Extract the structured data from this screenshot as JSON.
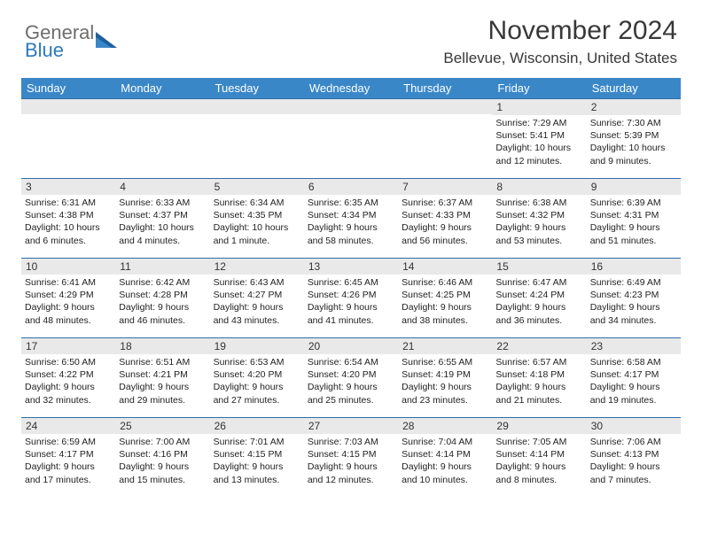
{
  "brand": {
    "top": "General",
    "bottom": "Blue"
  },
  "title": "November 2024",
  "location": "Bellevue, Wisconsin, United States",
  "colors": {
    "header_bg": "#3a87c8",
    "header_text": "#ffffff",
    "daynum_bg": "#e9e9e9",
    "border": "#2f6fa8",
    "logo_accent": "#2f78bd",
    "logo_gray": "#6e6e6e"
  },
  "day_headers": [
    "Sunday",
    "Monday",
    "Tuesday",
    "Wednesday",
    "Thursday",
    "Friday",
    "Saturday"
  ],
  "weeks": [
    [
      {
        "n": "",
        "lines": []
      },
      {
        "n": "",
        "lines": []
      },
      {
        "n": "",
        "lines": []
      },
      {
        "n": "",
        "lines": []
      },
      {
        "n": "",
        "lines": []
      },
      {
        "n": "1",
        "lines": [
          "Sunrise: 7:29 AM",
          "Sunset: 5:41 PM",
          "Daylight: 10 hours",
          "and 12 minutes."
        ]
      },
      {
        "n": "2",
        "lines": [
          "Sunrise: 7:30 AM",
          "Sunset: 5:39 PM",
          "Daylight: 10 hours",
          "and 9 minutes."
        ]
      }
    ],
    [
      {
        "n": "3",
        "lines": [
          "Sunrise: 6:31 AM",
          "Sunset: 4:38 PM",
          "Daylight: 10 hours",
          "and 6 minutes."
        ]
      },
      {
        "n": "4",
        "lines": [
          "Sunrise: 6:33 AM",
          "Sunset: 4:37 PM",
          "Daylight: 10 hours",
          "and 4 minutes."
        ]
      },
      {
        "n": "5",
        "lines": [
          "Sunrise: 6:34 AM",
          "Sunset: 4:35 PM",
          "Daylight: 10 hours",
          "and 1 minute."
        ]
      },
      {
        "n": "6",
        "lines": [
          "Sunrise: 6:35 AM",
          "Sunset: 4:34 PM",
          "Daylight: 9 hours",
          "and 58 minutes."
        ]
      },
      {
        "n": "7",
        "lines": [
          "Sunrise: 6:37 AM",
          "Sunset: 4:33 PM",
          "Daylight: 9 hours",
          "and 56 minutes."
        ]
      },
      {
        "n": "8",
        "lines": [
          "Sunrise: 6:38 AM",
          "Sunset: 4:32 PM",
          "Daylight: 9 hours",
          "and 53 minutes."
        ]
      },
      {
        "n": "9",
        "lines": [
          "Sunrise: 6:39 AM",
          "Sunset: 4:31 PM",
          "Daylight: 9 hours",
          "and 51 minutes."
        ]
      }
    ],
    [
      {
        "n": "10",
        "lines": [
          "Sunrise: 6:41 AM",
          "Sunset: 4:29 PM",
          "Daylight: 9 hours",
          "and 48 minutes."
        ]
      },
      {
        "n": "11",
        "lines": [
          "Sunrise: 6:42 AM",
          "Sunset: 4:28 PM",
          "Daylight: 9 hours",
          "and 46 minutes."
        ]
      },
      {
        "n": "12",
        "lines": [
          "Sunrise: 6:43 AM",
          "Sunset: 4:27 PM",
          "Daylight: 9 hours",
          "and 43 minutes."
        ]
      },
      {
        "n": "13",
        "lines": [
          "Sunrise: 6:45 AM",
          "Sunset: 4:26 PM",
          "Daylight: 9 hours",
          "and 41 minutes."
        ]
      },
      {
        "n": "14",
        "lines": [
          "Sunrise: 6:46 AM",
          "Sunset: 4:25 PM",
          "Daylight: 9 hours",
          "and 38 minutes."
        ]
      },
      {
        "n": "15",
        "lines": [
          "Sunrise: 6:47 AM",
          "Sunset: 4:24 PM",
          "Daylight: 9 hours",
          "and 36 minutes."
        ]
      },
      {
        "n": "16",
        "lines": [
          "Sunrise: 6:49 AM",
          "Sunset: 4:23 PM",
          "Daylight: 9 hours",
          "and 34 minutes."
        ]
      }
    ],
    [
      {
        "n": "17",
        "lines": [
          "Sunrise: 6:50 AM",
          "Sunset: 4:22 PM",
          "Daylight: 9 hours",
          "and 32 minutes."
        ]
      },
      {
        "n": "18",
        "lines": [
          "Sunrise: 6:51 AM",
          "Sunset: 4:21 PM",
          "Daylight: 9 hours",
          "and 29 minutes."
        ]
      },
      {
        "n": "19",
        "lines": [
          "Sunrise: 6:53 AM",
          "Sunset: 4:20 PM",
          "Daylight: 9 hours",
          "and 27 minutes."
        ]
      },
      {
        "n": "20",
        "lines": [
          "Sunrise: 6:54 AM",
          "Sunset: 4:20 PM",
          "Daylight: 9 hours",
          "and 25 minutes."
        ]
      },
      {
        "n": "21",
        "lines": [
          "Sunrise: 6:55 AM",
          "Sunset: 4:19 PM",
          "Daylight: 9 hours",
          "and 23 minutes."
        ]
      },
      {
        "n": "22",
        "lines": [
          "Sunrise: 6:57 AM",
          "Sunset: 4:18 PM",
          "Daylight: 9 hours",
          "and 21 minutes."
        ]
      },
      {
        "n": "23",
        "lines": [
          "Sunrise: 6:58 AM",
          "Sunset: 4:17 PM",
          "Daylight: 9 hours",
          "and 19 minutes."
        ]
      }
    ],
    [
      {
        "n": "24",
        "lines": [
          "Sunrise: 6:59 AM",
          "Sunset: 4:17 PM",
          "Daylight: 9 hours",
          "and 17 minutes."
        ]
      },
      {
        "n": "25",
        "lines": [
          "Sunrise: 7:00 AM",
          "Sunset: 4:16 PM",
          "Daylight: 9 hours",
          "and 15 minutes."
        ]
      },
      {
        "n": "26",
        "lines": [
          "Sunrise: 7:01 AM",
          "Sunset: 4:15 PM",
          "Daylight: 9 hours",
          "and 13 minutes."
        ]
      },
      {
        "n": "27",
        "lines": [
          "Sunrise: 7:03 AM",
          "Sunset: 4:15 PM",
          "Daylight: 9 hours",
          "and 12 minutes."
        ]
      },
      {
        "n": "28",
        "lines": [
          "Sunrise: 7:04 AM",
          "Sunset: 4:14 PM",
          "Daylight: 9 hours",
          "and 10 minutes."
        ]
      },
      {
        "n": "29",
        "lines": [
          "Sunrise: 7:05 AM",
          "Sunset: 4:14 PM",
          "Daylight: 9 hours",
          "and 8 minutes."
        ]
      },
      {
        "n": "30",
        "lines": [
          "Sunrise: 7:06 AM",
          "Sunset: 4:13 PM",
          "Daylight: 9 hours",
          "and 7 minutes."
        ]
      }
    ]
  ]
}
